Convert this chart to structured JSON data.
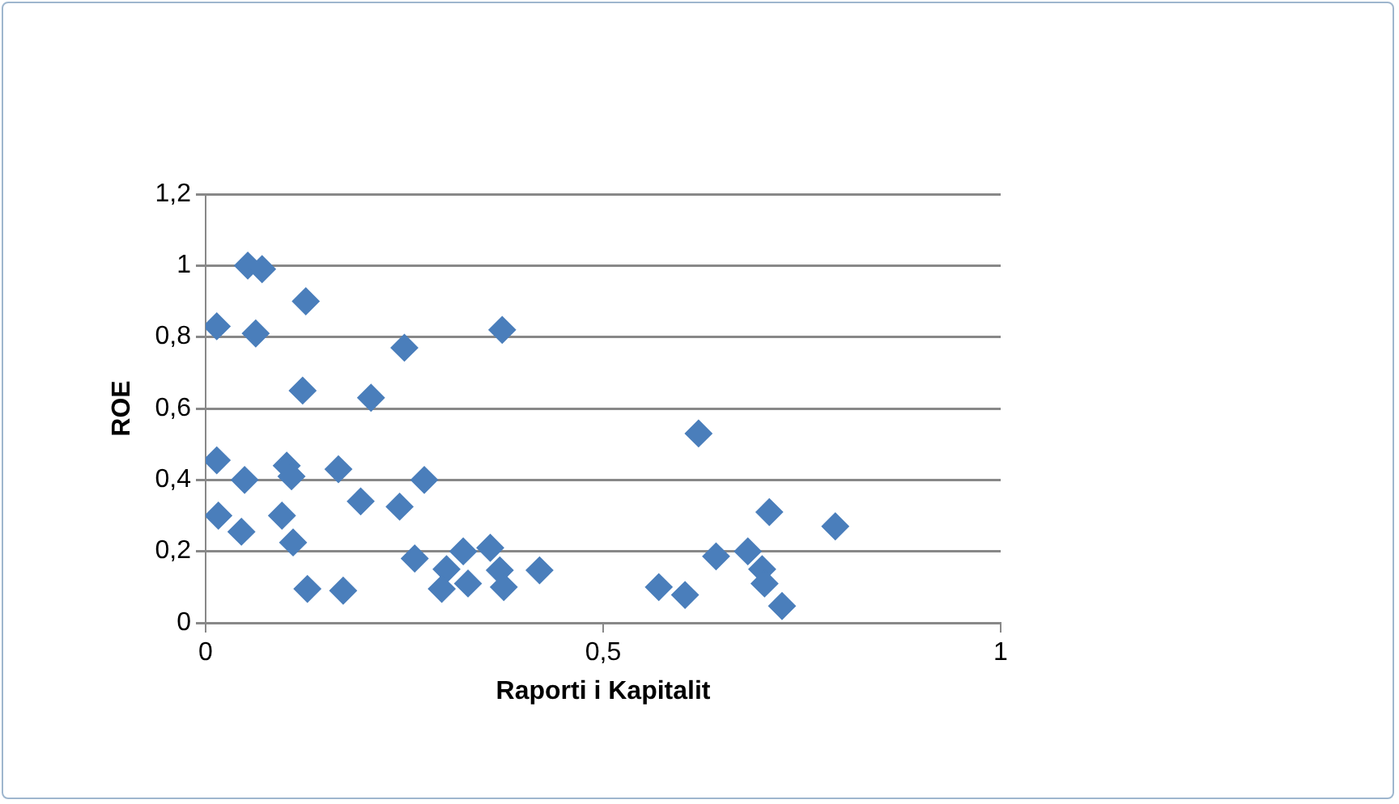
{
  "chart_data": {
    "type": "scatter",
    "xlabel": "Raporti i Kapitalit",
    "ylabel": "ROE",
    "color": "#4a7ebb",
    "marker": "diamond",
    "grid": "y",
    "xlim": [
      0,
      1
    ],
    "xticks": [
      0,
      {
        "value": 0.5,
        "label": "0,5"
      },
      1
    ],
    "ylim": [
      0,
      1.2
    ],
    "yticks": [
      0,
      {
        "value": 0.2,
        "label": "0,2"
      },
      {
        "value": 0.4,
        "label": "0,4"
      },
      {
        "value": 0.6,
        "label": "0,6"
      },
      {
        "value": 0.8,
        "label": "0,8"
      },
      1,
      {
        "value": 1.2,
        "label": "1,2"
      }
    ],
    "x": [
      0.053,
      0.071,
      0.126,
      0.014,
      0.063,
      0.25,
      0.373,
      0.122,
      0.208,
      0.62,
      0.014,
      0.049,
      0.102,
      0.108,
      0.167,
      0.275,
      0.195,
      0.244,
      0.016,
      0.045,
      0.096,
      0.11,
      0.128,
      0.173,
      0.263,
      0.303,
      0.297,
      0.324,
      0.33,
      0.358,
      0.37,
      0.375,
      0.42,
      0.57,
      0.603,
      0.642,
      0.682,
      0.7,
      0.703,
      0.709,
      0.725,
      0.792
    ],
    "values": [
      1.0,
      0.99,
      0.9,
      0.83,
      0.81,
      0.77,
      0.82,
      0.65,
      0.63,
      0.53,
      0.455,
      0.4,
      0.44,
      0.41,
      0.43,
      0.4,
      0.34,
      0.325,
      0.3,
      0.255,
      0.3,
      0.225,
      0.095,
      0.09,
      0.18,
      0.15,
      0.095,
      0.2,
      0.11,
      0.21,
      0.147,
      0.1,
      0.147,
      0.1,
      0.078,
      0.186,
      0.2,
      0.15,
      0.11,
      0.31,
      0.047,
      0.27
    ]
  }
}
